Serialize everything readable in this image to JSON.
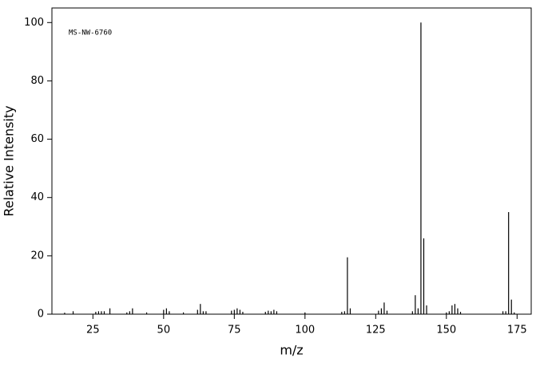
{
  "chart_data": {
    "type": "stem",
    "title": "MS-NW-6760",
    "xlabel": "m/z",
    "ylabel": "Relative Intensity",
    "x": [
      15,
      18,
      26,
      27,
      28,
      29,
      31,
      37,
      38,
      39,
      44,
      50,
      51,
      52,
      57,
      62,
      63,
      64,
      65,
      74,
      75,
      76,
      77,
      78,
      86,
      87,
      88,
      89,
      90,
      100,
      113,
      114,
      115,
      116,
      126,
      127,
      128,
      129,
      138,
      139,
      140,
      141,
      142,
      143,
      150,
      151,
      152,
      153,
      154,
      155,
      170,
      171,
      172,
      173,
      174
    ],
    "values": [
      0.5,
      1,
      0.8,
      1,
      1,
      1,
      2,
      0.6,
      1,
      2,
      0.6,
      1.5,
      2,
      1,
      0.6,
      1.5,
      3.5,
      1,
      1,
      1.2,
      1.5,
      2,
      1.5,
      0.8,
      0.8,
      1.2,
      1,
      1.5,
      1,
      0.6,
      0.8,
      1,
      19.5,
      2,
      1.2,
      2,
      4,
      1.2,
      1,
      6.5,
      2,
      100,
      26,
      3,
      0.6,
      1,
      3,
      3.5,
      2,
      0.8,
      1,
      1,
      35,
      5,
      0.6
    ],
    "color": "#000000",
    "xlim": [
      10.5,
      180
    ],
    "xticks": [
      25,
      50,
      75,
      100,
      125,
      150,
      175
    ],
    "ylim": [
      0,
      105
    ],
    "yticks": [
      0,
      20,
      40,
      60,
      80,
      100
    ],
    "grid": false
  }
}
